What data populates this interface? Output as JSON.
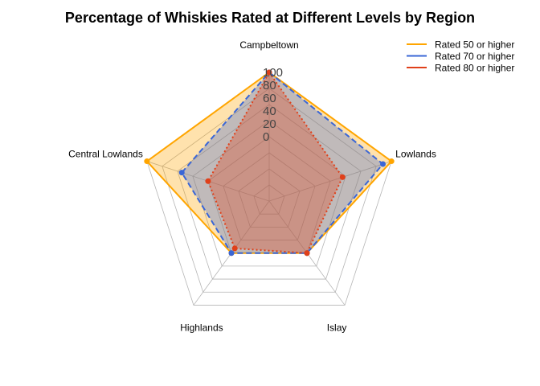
{
  "chart_data": {
    "type": "radar",
    "title": "Percentage of Whiskies Rated at Different Levels by Region",
    "axes": [
      "Campbeltown",
      "Lowlands",
      "Islay",
      "Highlands",
      "Central Lowlands"
    ],
    "rlim": [
      -100,
      100
    ],
    "ticks": [
      0,
      20,
      40,
      60,
      80,
      100
    ],
    "tick_labels": [
      "0",
      "20",
      "40",
      "60",
      "80",
      "100"
    ],
    "legend_position": "top-right",
    "series": [
      {
        "name": "Rated 50 or higher",
        "values": [
          100,
          100,
          0,
          0,
          100
        ],
        "color": "#FFA500",
        "fill": "#FFA500",
        "line_style": "solid"
      },
      {
        "name": "Rated 70 or higher",
        "values": [
          100,
          86,
          0,
          0,
          43
        ],
        "color": "#3A66D6",
        "fill": "#3A66D6",
        "line_style": "dashed"
      },
      {
        "name": "Rated 80 or higher",
        "values": [
          100,
          20,
          0,
          -9,
          0
        ],
        "color": "#E0401A",
        "fill": "#E0401A",
        "line_style": "dotted"
      }
    ]
  }
}
